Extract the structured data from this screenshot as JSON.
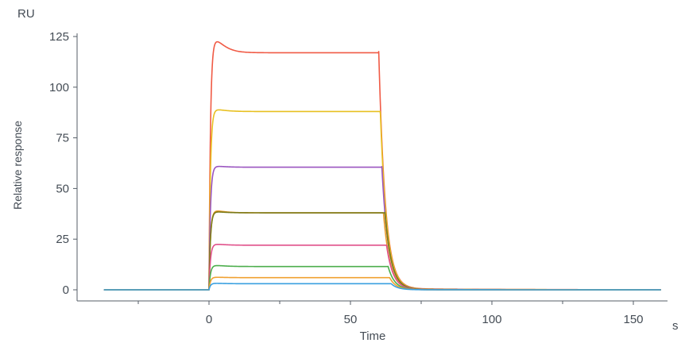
{
  "chart_data": {
    "type": "line",
    "title": "",
    "xlabel": "Time",
    "x_unit": "s",
    "ylabel": "Relative response",
    "y_unit": "RU",
    "xlim": [
      -40,
      163
    ],
    "ylim": [
      -5,
      128
    ],
    "x_ticks": [
      0,
      50,
      100,
      150
    ],
    "x_minor_ticks": [
      -25,
      25,
      75,
      125
    ],
    "y_ticks": [
      0,
      25,
      50,
      75,
      100,
      125
    ],
    "x_tick_labels": [
      "0",
      "50",
      "100",
      "150"
    ],
    "y_tick_labels": [
      "0",
      "25",
      "50",
      "75",
      "100",
      "125"
    ],
    "grid": false,
    "legend": "none",
    "x_start": -37,
    "x_end": 160,
    "association_start": 0,
    "dissociation_start": 60,
    "series": [
      {
        "color": "#f05a45",
        "plateau": 117,
        "peak": 123
      },
      {
        "color": "#e8c020",
        "plateau": 88,
        "peak": 89
      },
      {
        "color": "#9a55c0",
        "plateau": 60.5,
        "peak": 61
      },
      {
        "color": "#e89a2a",
        "plateau": 38,
        "peak": 39
      },
      {
        "color": "#7a7a1a",
        "plateau": 38,
        "peak": 38.5
      },
      {
        "color": "#e0508a",
        "plateau": 22,
        "peak": 22.5
      },
      {
        "color": "#4cae4c",
        "plateau": 11.5,
        "peak": 12
      },
      {
        "color": "#f0a030",
        "plateau": 6,
        "peak": 6.2
      },
      {
        "color": "#3aa0e0",
        "plateau": 3,
        "peak": 3.2
      }
    ]
  }
}
